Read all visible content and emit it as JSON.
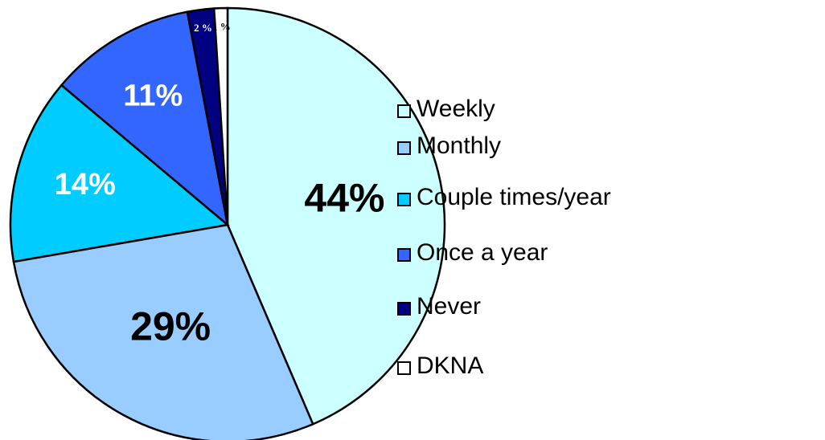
{
  "chart_data": {
    "type": "pie",
    "categories": [
      "Weekly",
      "Monthly",
      "Couple times/year",
      "Once a year",
      "Never",
      "DKNA"
    ],
    "values": [
      44,
      29,
      14,
      11,
      2,
      1
    ],
    "value_labels": [
      "44%",
      "29%",
      "14%",
      "11%",
      "2 %",
      "1 %"
    ],
    "colors": [
      "#ccffff",
      "#99ccff",
      "#00ccff",
      "#3366ff",
      "#000080",
      "#ffffff"
    ],
    "legend": "right"
  }
}
